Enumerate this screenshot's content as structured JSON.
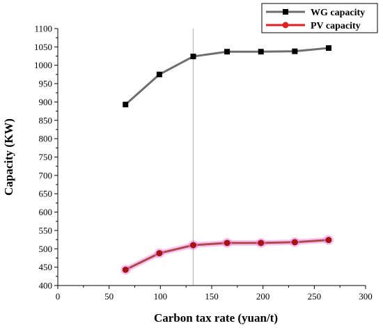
{
  "chart_data": {
    "type": "line",
    "xlabel": "Carbon tax rate (yuan/t)",
    "ylabel": "Capacity (KW)",
    "xlim": [
      0,
      300
    ],
    "ylim": [
      400,
      1100
    ],
    "xticks": [
      0,
      50,
      100,
      150,
      200,
      250,
      300
    ],
    "yticks": [
      400,
      450,
      500,
      550,
      600,
      650,
      700,
      750,
      800,
      850,
      900,
      950,
      1000,
      1050,
      1100
    ],
    "grid": false,
    "legend_position": "top-right",
    "reference_line_x": 132,
    "series": [
      {
        "name": "WG capacity",
        "marker": "square",
        "line_color": "#6e6e6e",
        "marker_color": "#000000",
        "x": [
          66,
          99,
          132,
          165,
          198,
          231,
          264
        ],
        "y": [
          893,
          975,
          1024,
          1037,
          1037,
          1038,
          1047
        ]
      },
      {
        "name": "PV capacity",
        "marker": "circle",
        "line_color": "#b04a4a",
        "marker_color": "#a31515",
        "halo_color": "#f07ce0",
        "x": [
          66,
          99,
          132,
          165,
          198,
          231,
          264
        ],
        "y": [
          443,
          488,
          510,
          516,
          516,
          518,
          524
        ]
      }
    ]
  }
}
